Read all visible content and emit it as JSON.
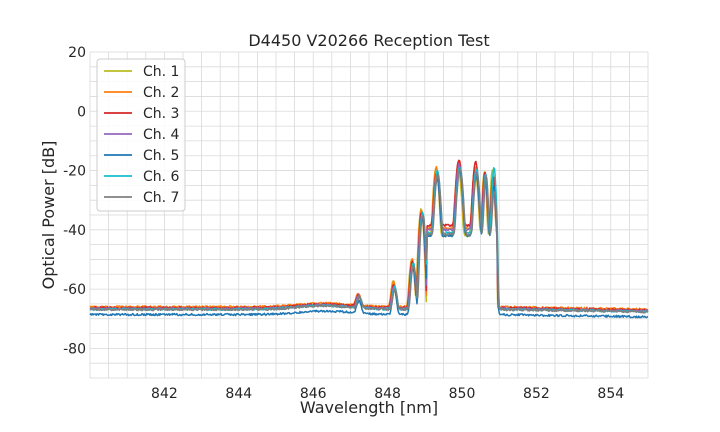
{
  "chart_data": {
    "type": "line",
    "title": "D4450 V20266 Reception Test",
    "xlabel": "Wavelength [nm]",
    "ylabel": "Optical Power [dB]",
    "xlim": [
      840,
      855
    ],
    "ylim": [
      -90,
      20
    ],
    "xticks": [
      842,
      844,
      846,
      848,
      850,
      852,
      854
    ],
    "yticks": [
      20,
      0,
      -20,
      -40,
      -60,
      -80
    ],
    "grid": true,
    "legend_position": "top-left",
    "series": [
      {
        "name": "Ch. 1",
        "color": "#bcbd22",
        "base": -66.5,
        "peaks": [
          -64,
          -58,
          -50,
          -33,
          -19.5,
          -20,
          -19.5,
          -20.5,
          -19.5
        ]
      },
      {
        "name": "Ch. 2",
        "color": "#ff7f0e",
        "base": -66.0,
        "peaks": [
          -63.5,
          -58,
          -50,
          -33,
          -19,
          -17.5,
          -19,
          -21,
          -23
        ]
      },
      {
        "name": "Ch. 3",
        "color": "#d62728",
        "base": -66.3,
        "peaks": [
          -64,
          -59,
          -51,
          -34,
          -21,
          -16.5,
          -17,
          -20.5,
          -22
        ]
      },
      {
        "name": "Ch. 4",
        "color": "#9467bd",
        "base": -66.6,
        "peaks": [
          -64.5,
          -60,
          -52,
          -35,
          -22,
          -18,
          -20,
          -21.5,
          -26
        ]
      },
      {
        "name": "Ch. 5",
        "color": "#1f77b4",
        "base": -68.6,
        "peaks": [
          -66,
          -61,
          -53,
          -36,
          -23,
          -20,
          -22,
          -23,
          -25
        ]
      },
      {
        "name": "Ch. 6",
        "color": "#17becf",
        "base": -66.8,
        "peaks": [
          -65,
          -60,
          -51,
          -34,
          -20,
          -19,
          -19.5,
          -21.5,
          -19
        ]
      },
      {
        "name": "Ch. 7",
        "color": "#7f7f7f",
        "base": -66.9,
        "peaks": [
          -65,
          -61,
          -52,
          -35,
          -21.5,
          -19.5,
          -21,
          -22,
          -27
        ]
      }
    ]
  }
}
